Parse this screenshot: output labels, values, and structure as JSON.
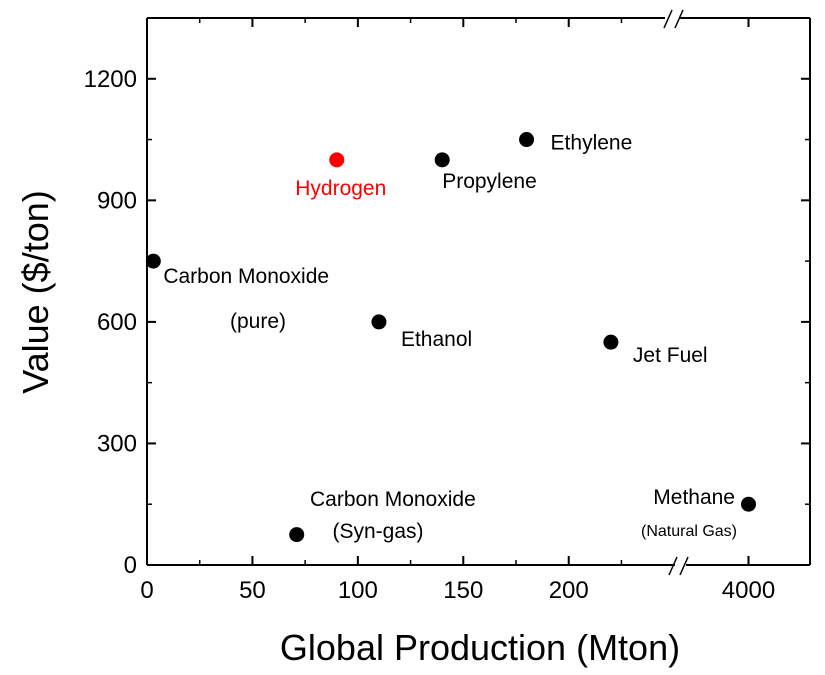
{
  "chart_data": {
    "type": "scatter",
    "xlabel": "Global Production (Mton)",
    "ylabel": "Value  ($/ton)",
    "ylim": [
      0,
      1350
    ],
    "x_axis": {
      "segments": [
        {
          "range": [
            0,
            250
          ],
          "ticks": [
            0,
            50,
            100,
            150,
            200
          ]
        },
        {
          "range": [
            3900,
            4100
          ],
          "ticks": [
            4000
          ]
        }
      ],
      "break": true
    },
    "y_ticks": [
      0,
      300,
      600,
      900,
      1200
    ],
    "grid": false,
    "points": [
      {
        "label": "Carbon Monoxide",
        "sublabel": "(pure)",
        "x": 3,
        "y": 750,
        "color": "#000000"
      },
      {
        "label": "Hydrogen",
        "sublabel": "",
        "x": 90,
        "y": 1000,
        "color": "#ff0000"
      },
      {
        "label": "Propylene",
        "sublabel": "",
        "x": 140,
        "y": 1000,
        "color": "#000000"
      },
      {
        "label": "Ethylene",
        "sublabel": "",
        "x": 180,
        "y": 1050,
        "color": "#000000"
      },
      {
        "label": "Ethanol",
        "sublabel": "",
        "x": 110,
        "y": 600,
        "color": "#000000"
      },
      {
        "label": "Jet Fuel",
        "sublabel": "",
        "x": 220,
        "y": 550,
        "color": "#000000"
      },
      {
        "label": "Carbon Monoxide",
        "sublabel": "(Syn-gas)",
        "x": 71,
        "y": 75,
        "color": "#000000"
      },
      {
        "label": "Methane",
        "sublabel": "(Natural Gas)",
        "x": 4000,
        "y": 150,
        "color": "#000000"
      }
    ]
  }
}
